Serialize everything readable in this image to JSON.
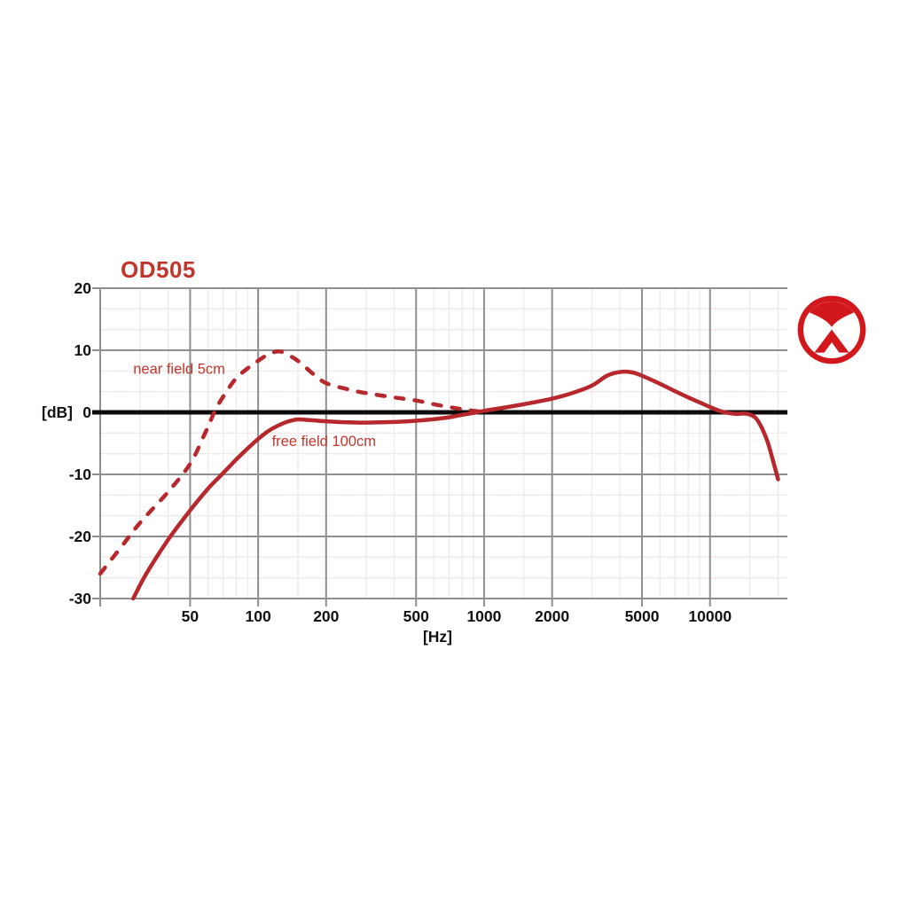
{
  "page": {
    "title": "OD505"
  },
  "logo": {
    "name": "austrian-audio-logo",
    "color": "#d2171d"
  },
  "colors": {
    "accent_red": "#c0362c",
    "curve_red": "#b7282c",
    "logo_red": "#d2171d",
    "grid_major": "#8f8f8f",
    "grid_minor": "#f2eaea",
    "zero_line": "#0b0b0b",
    "tick_text": "#111111"
  },
  "chart_data": {
    "type": "line",
    "title": "OD505",
    "xlabel": "[Hz]",
    "ylabel": "[dB]",
    "x_scale": "log",
    "xlim": [
      20,
      22000
    ],
    "ylim": [
      -30,
      20
    ],
    "grid": true,
    "x_major_ticks": [
      50,
      100,
      200,
      500,
      1000,
      2000,
      5000,
      10000
    ],
    "x_minor_gridlines": [
      30,
      40,
      60,
      70,
      80,
      90,
      150,
      300,
      400,
      600,
      700,
      800,
      900,
      1500,
      3000,
      4000,
      6000,
      7000,
      8000,
      9000,
      15000,
      20000
    ],
    "y_major_ticks": [
      20,
      10,
      0,
      -10,
      -20,
      -30
    ],
    "y_minor_divisions_per_major": 3,
    "zero_line_value": 0,
    "series": [
      {
        "name": "near field 5cm",
        "style": "dashed",
        "color": "#b7282c",
        "points": [
          [
            20,
            -26
          ],
          [
            25,
            -21.5
          ],
          [
            30,
            -17.8
          ],
          [
            40,
            -12.8
          ],
          [
            50,
            -8.3
          ],
          [
            58,
            -3.5
          ],
          [
            65,
            0.5
          ],
          [
            72,
            3.2
          ],
          [
            80,
            5.5
          ],
          [
            90,
            7.1
          ],
          [
            100,
            8.3
          ],
          [
            112,
            9.4
          ],
          [
            125,
            9.8
          ],
          [
            140,
            9.0
          ],
          [
            155,
            7.9
          ],
          [
            175,
            6.2
          ],
          [
            200,
            4.7
          ],
          [
            250,
            3.7
          ],
          [
            300,
            3.1
          ],
          [
            400,
            2.4
          ],
          [
            500,
            1.9
          ],
          [
            600,
            1.3
          ],
          [
            700,
            0.85
          ],
          [
            800,
            0.5
          ],
          [
            900,
            0.25
          ],
          [
            1000,
            0.05
          ]
        ]
      },
      {
        "name": "free field 100cm",
        "style": "solid",
        "color": "#b7282c",
        "points": [
          [
            28,
            -30
          ],
          [
            32,
            -26
          ],
          [
            40,
            -20.5
          ],
          [
            50,
            -15.8
          ],
          [
            60,
            -12.3
          ],
          [
            70,
            -9.8
          ],
          [
            80,
            -7.6
          ],
          [
            90,
            -5.8
          ],
          [
            100,
            -4.3
          ],
          [
            110,
            -3.1
          ],
          [
            120,
            -2.3
          ],
          [
            135,
            -1.5
          ],
          [
            150,
            -1.15
          ],
          [
            170,
            -1.25
          ],
          [
            200,
            -1.45
          ],
          [
            250,
            -1.6
          ],
          [
            300,
            -1.65
          ],
          [
            400,
            -1.55
          ],
          [
            500,
            -1.35
          ],
          [
            600,
            -1.1
          ],
          [
            700,
            -0.8
          ],
          [
            800,
            -0.4
          ],
          [
            900,
            -0.1
          ],
          [
            1000,
            0.25
          ],
          [
            1200,
            0.7
          ],
          [
            1500,
            1.3
          ],
          [
            2000,
            2.2
          ],
          [
            2500,
            3.2
          ],
          [
            3000,
            4.3
          ],
          [
            3500,
            5.9
          ],
          [
            4000,
            6.5
          ],
          [
            4500,
            6.45
          ],
          [
            5000,
            5.9
          ],
          [
            6000,
            4.6
          ],
          [
            7000,
            3.4
          ],
          [
            8000,
            2.4
          ],
          [
            9000,
            1.6
          ],
          [
            10000,
            0.85
          ],
          [
            11000,
            0.25
          ],
          [
            12000,
            -0.1
          ],
          [
            13000,
            -0.25
          ],
          [
            14000,
            -0.2
          ],
          [
            15000,
            -0.35
          ],
          [
            16000,
            -1.0
          ],
          [
            17000,
            -2.6
          ],
          [
            18000,
            -4.8
          ],
          [
            19000,
            -7.8
          ],
          [
            20000,
            -10.8
          ]
        ]
      }
    ],
    "annotations": [
      {
        "text": "near field 5cm",
        "x": 28,
        "y": 7.1,
        "anchor": "start"
      },
      {
        "text": "free field 100cm",
        "x": 115,
        "y": -4.6,
        "anchor": "start"
      }
    ],
    "legend_position": "inline-annotations"
  }
}
